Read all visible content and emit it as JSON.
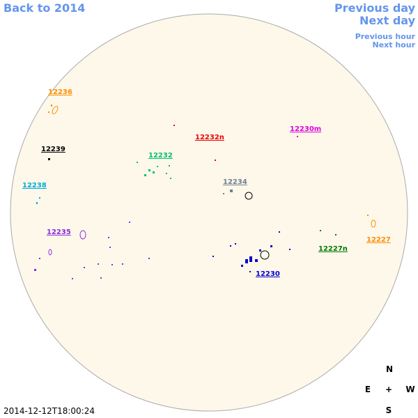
{
  "nav": {
    "back": "Back to 2014",
    "previous_day": "Previous day",
    "next_day": "Next day",
    "previous_hour": "Previous hour",
    "next_hour": "Next hour"
  },
  "regions": [
    {
      "label": "12236",
      "color": "#ff8c00"
    },
    {
      "label": "12239",
      "color": "#000000"
    },
    {
      "label": "12238",
      "color": "#00aadd"
    },
    {
      "label": "12235",
      "color": "#8a2be2"
    },
    {
      "label": "12232",
      "color": "#00c070"
    },
    {
      "label": "12232n",
      "color": "#ee0000"
    },
    {
      "label": "12230m",
      "color": "#dd00dd"
    },
    {
      "label": "12234",
      "color": "#708090"
    },
    {
      "label": "12230",
      "color": "#0000cc"
    },
    {
      "label": "12227n",
      "color": "#007700"
    },
    {
      "label": "12227",
      "color": "#ff8c00"
    }
  ],
  "compass": {
    "n": "N",
    "e": "E",
    "center": "+",
    "w": "W",
    "s": "S"
  },
  "timestamp": "2014-12-12T18:00:24"
}
